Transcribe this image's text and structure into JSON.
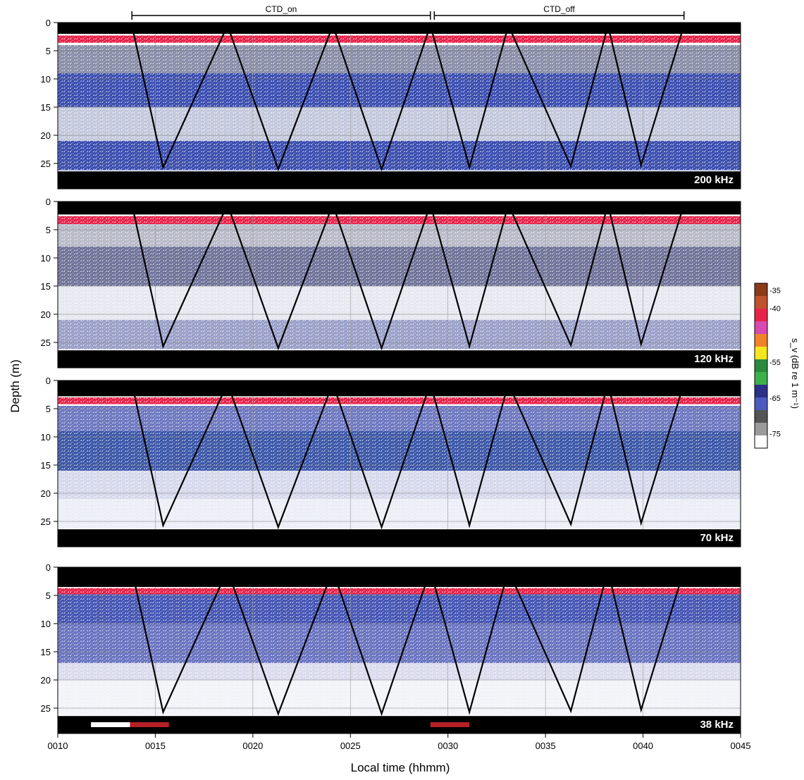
{
  "chart_data": {
    "type": "heatmap",
    "title": "",
    "xlabel": "Local time (hhmm)",
    "ylabel": "Depth (m)",
    "x_ticks": [
      "0010",
      "0015",
      "0020",
      "0025",
      "0030",
      "0035",
      "0040",
      "0045"
    ],
    "x_tick_minutes": [
      10,
      15,
      20,
      25,
      30,
      35,
      40,
      45
    ],
    "xlim_minutes": [
      10,
      45
    ],
    "y_ticks": [
      "0",
      "5",
      "10",
      "15",
      "20",
      "25"
    ],
    "y_tick_values": [
      0,
      5,
      10,
      15,
      20,
      25
    ],
    "ylim": [
      0,
      29.5
    ],
    "grid": true,
    "panels": [
      {
        "label": "200 kHz",
        "surface_depth": 2.0,
        "layers": [
          {
            "top": 2.3,
            "bottom": 3.6,
            "color": "#e8234a"
          },
          {
            "top": 4,
            "bottom": 9,
            "color": "#8a8ea8"
          },
          {
            "top": 9,
            "bottom": 15,
            "color": "#3c4fb0"
          },
          {
            "top": 15,
            "bottom": 21,
            "color": "#c4c8dc"
          },
          {
            "top": 21,
            "bottom": 26.2,
            "color": "#3c4fb0"
          }
        ]
      },
      {
        "label": "120 kHz",
        "surface_depth": 2.3,
        "layers": [
          {
            "top": 2.6,
            "bottom": 4.0,
            "color": "#e8234a"
          },
          {
            "top": 4,
            "bottom": 8,
            "color": "#b8bac8"
          },
          {
            "top": 8,
            "bottom": 15,
            "color": "#70749a"
          },
          {
            "top": 15,
            "bottom": 21,
            "color": "#e6e8f0"
          },
          {
            "top": 21,
            "bottom": 26.2,
            "color": "#9aa0c8"
          }
        ]
      },
      {
        "label": "70 kHz",
        "surface_depth": 2.8,
        "layers": [
          {
            "top": 3.0,
            "bottom": 4.2,
            "color": "#e8234a"
          },
          {
            "top": 4.5,
            "bottom": 9,
            "color": "#6e78c0"
          },
          {
            "top": 9,
            "bottom": 16,
            "color": "#3d58a8"
          },
          {
            "top": 16,
            "bottom": 21,
            "color": "#d6d9ec"
          },
          {
            "top": 21,
            "bottom": 26.2,
            "color": "#eceef6"
          }
        ]
      },
      {
        "label": "38 kHz",
        "surface_depth": 3.5,
        "layers": [
          {
            "top": 3.7,
            "bottom": 4.8,
            "color": "#e8234a"
          },
          {
            "top": 4.8,
            "bottom": 10,
            "color": "#4656b4"
          },
          {
            "top": 10,
            "bottom": 17,
            "color": "#6a74c0"
          },
          {
            "top": 17,
            "bottom": 20,
            "color": "#dadced"
          },
          {
            "top": 20,
            "bottom": 26.2,
            "color": "#f2f3f8"
          }
        ]
      }
    ],
    "ctd_profile": {
      "time_minutes": [
        13.8,
        15.4,
        18.7,
        21.3,
        24.1,
        26.6,
        29.1,
        31.1,
        33.1,
        36.3,
        38.2,
        39.9,
        42.1
      ],
      "depth_m": [
        0.5,
        25.7,
        0.5,
        26.0,
        0.5,
        26.0,
        0.5,
        25.7,
        0.5,
        25.5,
        0.5,
        25.3,
        0.5
      ]
    },
    "periods": [
      {
        "label": "CTD_on",
        "start_minutes": 13.8,
        "end_minutes": 29.1
      },
      {
        "label": "CTD_off",
        "start_minutes": 29.3,
        "end_minutes": 42.1
      }
    ],
    "timeline_bar": [
      {
        "start_minutes": 10.0,
        "end_minutes": 11.7,
        "color": "#000000"
      },
      {
        "start_minutes": 11.7,
        "end_minutes": 13.7,
        "color": "#ffffff"
      },
      {
        "start_minutes": 13.7,
        "end_minutes": 15.7,
        "color": "#b62025"
      },
      {
        "start_minutes": 15.7,
        "end_minutes": 29.1,
        "color": "#000000"
      },
      {
        "start_minutes": 29.1,
        "end_minutes": 31.1,
        "color": "#b62025"
      },
      {
        "start_minutes": 31.1,
        "end_minutes": 45.0,
        "color": "#000000"
      }
    ],
    "colorbar": {
      "title": "s_v (dB re 1 m⁻¹)",
      "labels": [
        "-35",
        "-40",
        "-55",
        "-65",
        "-75"
      ],
      "label_values": [
        -35,
        -40,
        -55,
        -65,
        -75
      ],
      "colors": [
        "#8b3a1a",
        "#c0502e",
        "#e8234a",
        "#d848b0",
        "#f0822a",
        "#f5e620",
        "#2a8a3c",
        "#3cb04a",
        "#2b3188",
        "#4b5bc0",
        "#555555",
        "#9a9a9a",
        "#ffffff"
      ]
    }
  }
}
